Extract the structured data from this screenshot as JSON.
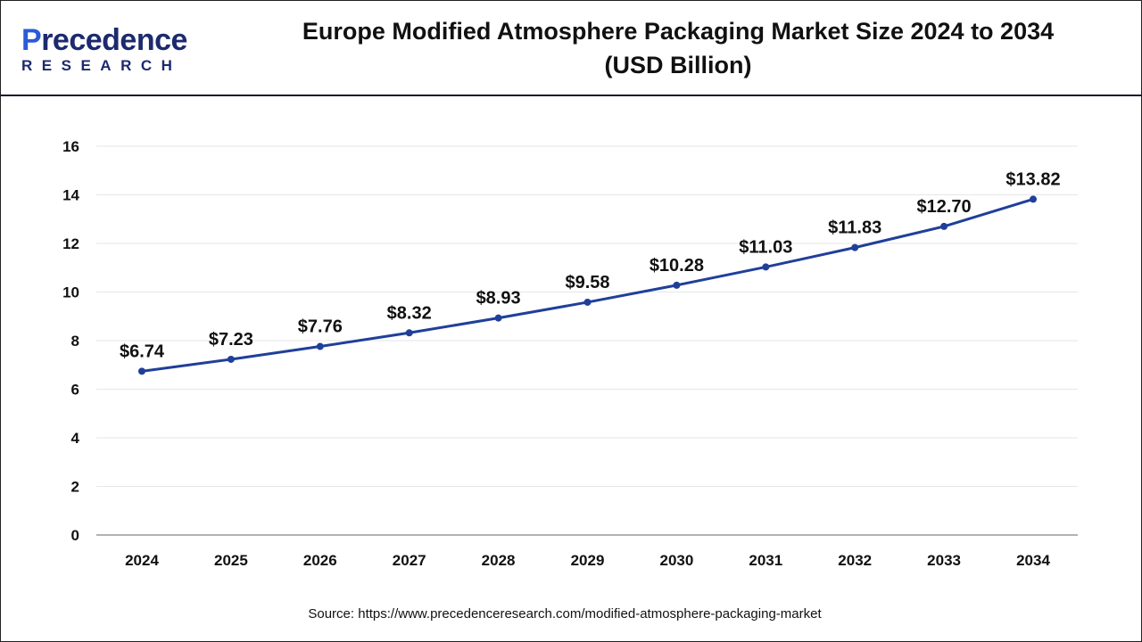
{
  "header": {
    "logo_text": "Precedence",
    "logo_subtext": "RESEARCH",
    "title_line1": "Europe Modified Atmosphere Packaging Market Size 2024 to 2034",
    "title_line2": "(USD Billion)"
  },
  "source": "Source: https://www.precedenceresearch.com/modified-atmosphere-packaging-market",
  "colors": {
    "line": "#1f3f9a",
    "grid": "#e6e6e6",
    "axis": "#999999"
  },
  "chart_data": {
    "type": "line",
    "categories": [
      "2024",
      "2025",
      "2026",
      "2027",
      "2028",
      "2029",
      "2030",
      "2031",
      "2032",
      "2033",
      "2034"
    ],
    "values": [
      6.74,
      7.23,
      7.76,
      8.32,
      8.93,
      9.58,
      10.28,
      11.03,
      11.83,
      12.7,
      13.82
    ],
    "data_labels": [
      "$6.74",
      "$7.23",
      "$7.76",
      "$8.32",
      "$8.93",
      "$9.58",
      "$10.28",
      "$11.03",
      "$11.83",
      "$12.70",
      "$13.82"
    ],
    "yticks": [
      0,
      2,
      4,
      6,
      8,
      10,
      12,
      14,
      16
    ],
    "ylim": [
      0,
      16
    ],
    "grid": true,
    "markers": true
  }
}
